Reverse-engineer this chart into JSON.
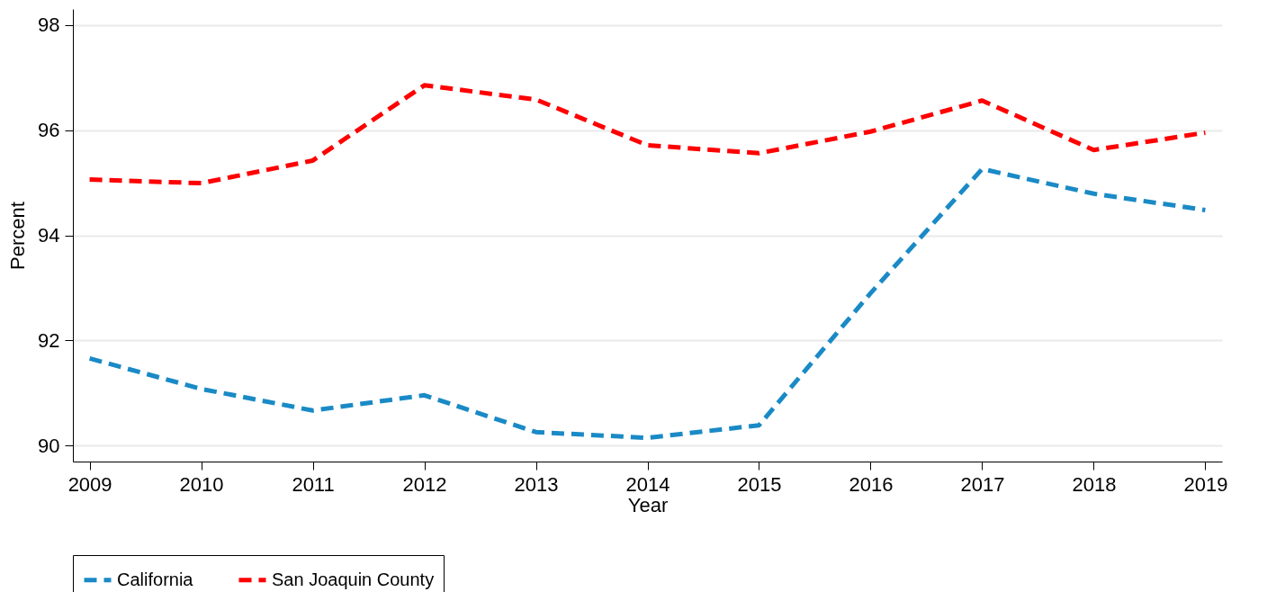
{
  "chart_data": {
    "type": "line",
    "xlabel": "Year",
    "ylabel": "Percent",
    "x": [
      2009,
      2010,
      2011,
      2012,
      2013,
      2014,
      2015,
      2016,
      2017,
      2018,
      2019
    ],
    "series": [
      {
        "name": "California",
        "color": "#1a8ac6",
        "values": [
          91.66,
          91.08,
          90.67,
          90.96,
          90.26,
          90.15,
          90.39,
          92.9,
          95.26,
          94.79,
          94.48
        ]
      },
      {
        "name": "San Joaquin County",
        "color": "#ff0000",
        "values": [
          95.06,
          94.99,
          95.42,
          96.85,
          96.58,
          95.71,
          95.56,
          95.97,
          96.56,
          95.62,
          95.95
        ]
      }
    ],
    "xlim": [
      2008.85,
      2019.15
    ],
    "xticks": [
      2009,
      2010,
      2011,
      2012,
      2013,
      2014,
      2015,
      2016,
      2017,
      2018,
      2019
    ],
    "ylim": [
      89.7,
      98.3
    ],
    "yticks": [
      90,
      92,
      94,
      96,
      98
    ],
    "grid": "y",
    "legend": "bottom",
    "line_style": "dashed"
  }
}
